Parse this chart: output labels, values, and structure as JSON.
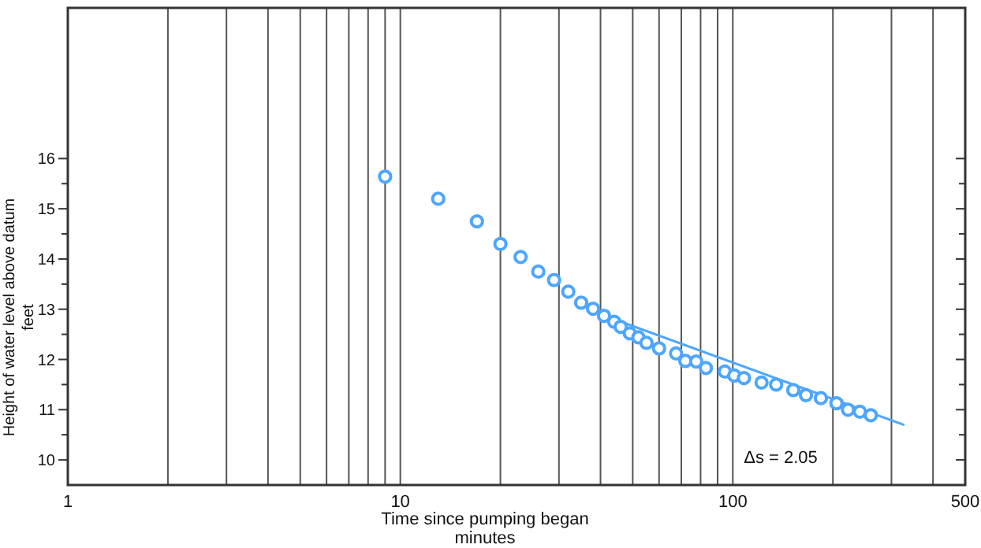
{
  "chart_data": {
    "type": "scatter",
    "xlabel": "Time since pumping began\nminutes",
    "ylabel": "Height of water level above datum\nfeet",
    "log": "x",
    "grid": "x",
    "xlim": [
      1,
      500
    ],
    "ylim": [
      9.5,
      19
    ],
    "xticks": [
      1,
      {
        "value": 2,
        "label": null
      },
      {
        "value": 3,
        "label": null
      },
      {
        "value": 4,
        "label": null
      },
      {
        "value": 5,
        "label": null
      },
      {
        "value": 6,
        "label": null
      },
      {
        "value": 7,
        "label": null
      },
      {
        "value": 8,
        "label": null
      },
      {
        "value": 9,
        "label": null
      },
      10,
      {
        "value": 20,
        "label": null
      },
      {
        "value": 30,
        "label": null
      },
      {
        "value": 40,
        "label": null
      },
      {
        "value": 50,
        "label": null
      },
      {
        "value": 60,
        "label": null
      },
      {
        "value": 70,
        "label": null
      },
      {
        "value": 80,
        "label": null
      },
      {
        "value": 90,
        "label": null
      },
      100,
      {
        "value": 200,
        "label": null
      },
      {
        "value": 300,
        "label": null
      },
      {
        "value": 400,
        "label": null
      },
      500
    ],
    "yticks": [
      10,
      {
        "value": 10.5,
        "label": null
      },
      11,
      {
        "value": 11.5,
        "label": null
      },
      12,
      {
        "value": 12.5,
        "label": null
      },
      13,
      {
        "value": 13.5,
        "label": null
      },
      14,
      {
        "value": 14.5,
        "label": null
      },
      15,
      {
        "value": 15.5,
        "label": null
      },
      16
    ],
    "annotations": [
      "Δs = 2.05"
    ],
    "series": [
      {
        "marker": "circle",
        "color": "#4da6ff",
        "x": [
          9,
          13,
          17,
          20,
          23,
          26,
          29,
          32,
          35,
          38,
          41,
          44,
          46,
          49,
          52,
          55,
          60,
          67.5,
          72,
          77.6,
          83,
          94.6,
          101,
          108,
          122,
          135,
          152,
          166,
          184,
          205,
          222,
          241,
          260
        ],
        "values": [
          15.64,
          15.2,
          14.75,
          14.3,
          14.04,
          13.75,
          13.58,
          13.35,
          13.13,
          13.01,
          12.87,
          12.75,
          12.65,
          12.52,
          12.44,
          12.33,
          12.22,
          12.12,
          11.97,
          11.96,
          11.83,
          11.76,
          11.68,
          11.63,
          11.54,
          11.5,
          11.39,
          11.29,
          11.23,
          11.13,
          11,
          10.96,
          10.89
        ]
      },
      {
        "type": "line",
        "color": "#4da6ff",
        "x": [
          40,
          326
        ],
        "values": [
          12.9,
          10.7
        ]
      }
    ]
  }
}
